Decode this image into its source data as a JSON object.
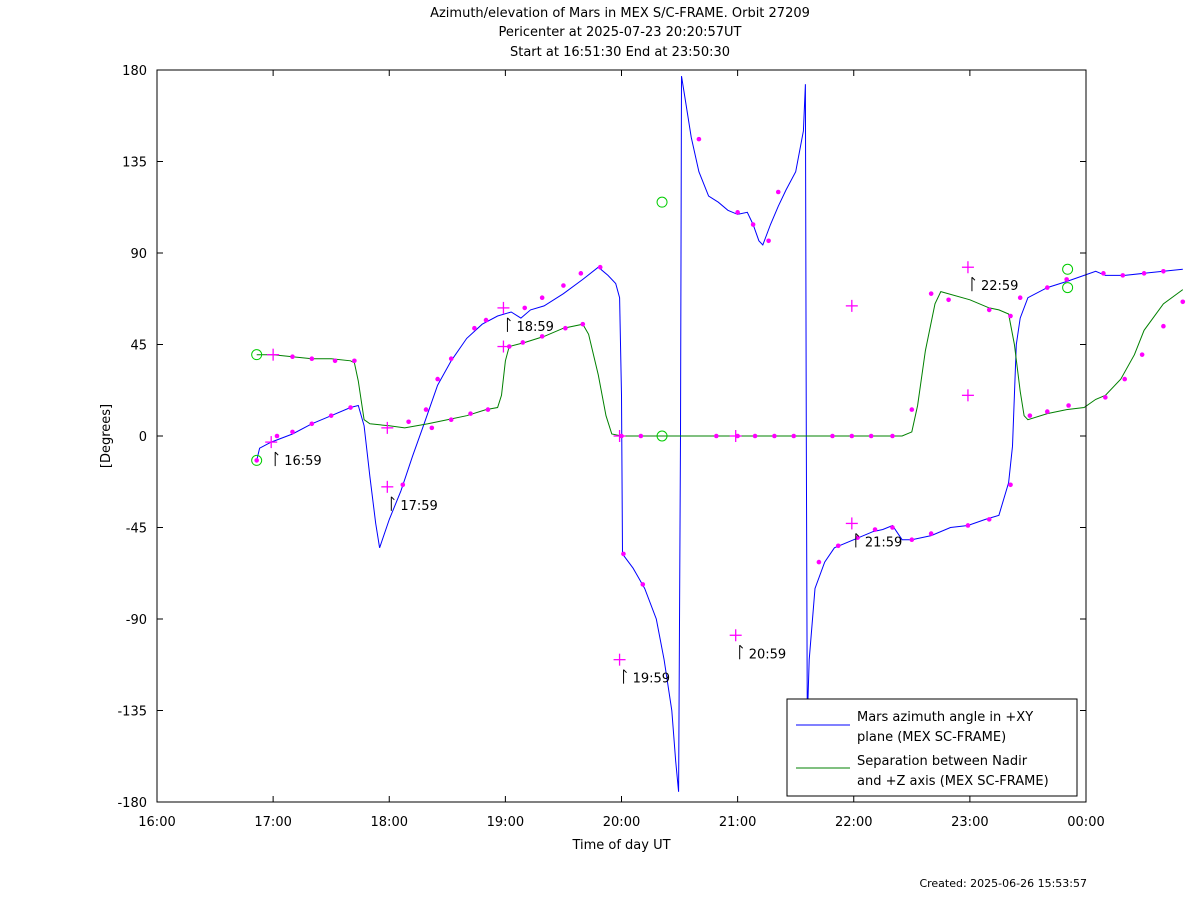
{
  "title": {
    "line1": "Azimuth/elevation of Mars in MEX S/C-FRAME.  Orbit 27209",
    "line2": "Pericenter at 2025-07-23 20:20:57UT",
    "line3": "Start at 16:51:30 End at 23:50:30"
  },
  "footer": "Created: 2025-06-26 15:53:57",
  "colors": {
    "azimuth": "#0000ff",
    "separation": "#008000",
    "marker": "#ff00ff",
    "circle": "#00cc00"
  },
  "chart_data": {
    "type": "line",
    "xlabel": "Time of day UT",
    "ylabel": "[Degrees]",
    "xlim": [
      "16:00",
      "00:00"
    ],
    "ylim": [
      -180,
      180
    ],
    "xticks": [
      "16:00",
      "17:00",
      "18:00",
      "19:00",
      "20:00",
      "21:00",
      "22:00",
      "23:00",
      "00:00"
    ],
    "yticks": [
      180,
      135,
      90,
      45,
      0,
      -45,
      -90,
      -135,
      -180
    ],
    "legend_position": "bottom-right",
    "series": [
      {
        "name": "Mars azimuth angle in +XY plane (MEX SC-FRAME)",
        "legend_lines": [
          "Mars azimuth angle in +XY",
          "plane (MEX SC-FRAME)"
        ],
        "points": [
          [
            "16:51:30",
            -12
          ],
          [
            "16:53",
            -6
          ],
          [
            "16:59",
            -3
          ],
          [
            "17:10",
            1
          ],
          [
            "17:20",
            6
          ],
          [
            "17:30",
            10
          ],
          [
            "17:40",
            14
          ],
          [
            "17:44",
            15
          ],
          [
            "17:47",
            5
          ],
          [
            "17:50",
            -20
          ],
          [
            "17:53",
            -43
          ],
          [
            "17:55",
            -55
          ],
          [
            "18:00",
            -41
          ],
          [
            "18:06",
            -27
          ],
          [
            "18:12",
            -10
          ],
          [
            "18:18",
            6
          ],
          [
            "18:25",
            25
          ],
          [
            "18:32",
            37
          ],
          [
            "18:40",
            48
          ],
          [
            "18:48",
            55
          ],
          [
            "18:56",
            59
          ],
          [
            "19:03",
            61
          ],
          [
            "19:08",
            58
          ],
          [
            "19:13",
            62
          ],
          [
            "19:20",
            64
          ],
          [
            "19:30",
            70
          ],
          [
            "19:40",
            77
          ],
          [
            "19:48",
            83
          ],
          [
            "19:53",
            79
          ],
          [
            "19:57",
            75
          ],
          [
            "19:59",
            68
          ],
          [
            "20:00",
            20
          ],
          [
            "20:00:30",
            -58
          ],
          [
            "20:06",
            -65
          ],
          [
            "20:12",
            -75
          ],
          [
            "20:18",
            -90
          ],
          [
            "20:22",
            -110
          ],
          [
            "20:26",
            -135
          ],
          [
            "20:28",
            -160
          ],
          [
            "20:29:30",
            -175
          ],
          [
            "20:30:30",
            0
          ],
          [
            "20:31",
            177
          ],
          [
            "20:33",
            165
          ],
          [
            "20:36",
            147
          ],
          [
            "20:40",
            130
          ],
          [
            "20:45",
            118
          ],
          [
            "20:50",
            115
          ],
          [
            "20:55",
            111
          ],
          [
            "21:00",
            109
          ],
          [
            "21:05",
            110
          ],
          [
            "21:08",
            104
          ],
          [
            "21:11",
            96
          ],
          [
            "21:13",
            94
          ],
          [
            "21:17",
            104
          ],
          [
            "21:21",
            113
          ],
          [
            "21:25",
            121
          ],
          [
            "21:30",
            130
          ],
          [
            "21:34",
            150
          ],
          [
            "21:35",
            173
          ],
          [
            "21:35:30",
            0
          ],
          [
            "21:36",
            -140
          ],
          [
            "21:37",
            -110
          ],
          [
            "21:40",
            -75
          ],
          [
            "21:45",
            -62
          ],
          [
            "21:50",
            -55
          ],
          [
            "22:00",
            -51
          ],
          [
            "22:10",
            -47
          ],
          [
            "22:15",
            -46
          ],
          [
            "22:20",
            -44
          ],
          [
            "22:25",
            -51
          ],
          [
            "22:30",
            -51
          ],
          [
            "22:40",
            -49
          ],
          [
            "22:50",
            -45
          ],
          [
            "22:59",
            -44
          ],
          [
            "23:08",
            -41
          ],
          [
            "23:15",
            -39
          ],
          [
            "23:20",
            -23
          ],
          [
            "23:22",
            -5
          ],
          [
            "23:23",
            20
          ],
          [
            "23:24",
            45
          ],
          [
            "23:26",
            58
          ],
          [
            "23:30",
            68
          ],
          [
            "23:40",
            73
          ],
          [
            "23:50",
            76
          ],
          [
            "23:59",
            79
          ],
          [
            "0:05",
            81
          ],
          [
            "0:10",
            79
          ],
          [
            "0:20",
            79
          ],
          [
            "0:30",
            80
          ],
          [
            "0:40",
            81
          ],
          [
            "0:50",
            82
          ]
        ]
      },
      {
        "name": "Separation between Nadir and +Z axis (MEX SC-FRAME)",
        "legend_lines": [
          "Separation between Nadir",
          "and +Z axis (MEX SC-FRAME)"
        ],
        "points": [
          [
            "16:51:30",
            40
          ],
          [
            "17:00",
            40
          ],
          [
            "17:10",
            39
          ],
          [
            "17:20",
            38
          ],
          [
            "17:30",
            38
          ],
          [
            "17:40",
            37
          ],
          [
            "17:42",
            36
          ],
          [
            "17:44",
            27
          ],
          [
            "17:47",
            8
          ],
          [
            "17:50",
            6
          ],
          [
            "18:00",
            5
          ],
          [
            "18:08",
            4
          ],
          [
            "18:20",
            6
          ],
          [
            "18:30",
            8
          ],
          [
            "18:40",
            10
          ],
          [
            "18:50",
            13
          ],
          [
            "18:56",
            14
          ],
          [
            "18:58",
            20
          ],
          [
            "19:00",
            37
          ],
          [
            "19:02",
            44
          ],
          [
            "19:10",
            46
          ],
          [
            "19:20",
            49
          ],
          [
            "19:30",
            53
          ],
          [
            "19:40",
            55
          ],
          [
            "19:43",
            50
          ],
          [
            "19:48",
            30
          ],
          [
            "19:52",
            10
          ],
          [
            "19:55",
            1
          ],
          [
            "20:00",
            0
          ],
          [
            "20:20",
            0
          ],
          [
            "21:00",
            0
          ],
          [
            "21:40",
            0
          ],
          [
            "22:00",
            0
          ],
          [
            "22:25",
            0
          ],
          [
            "22:30",
            2
          ],
          [
            "22:33",
            15
          ],
          [
            "22:37",
            42
          ],
          [
            "22:42",
            65
          ],
          [
            "22:45",
            71
          ],
          [
            "23:00",
            67
          ],
          [
            "23:10",
            63
          ],
          [
            "23:15",
            62
          ],
          [
            "23:20",
            60
          ],
          [
            "23:23",
            45
          ],
          [
            "23:26",
            22
          ],
          [
            "23:28",
            10
          ],
          [
            "23:30",
            8
          ],
          [
            "23:40",
            11
          ],
          [
            "23:50",
            13
          ],
          [
            "23:59",
            14
          ],
          [
            "0:05",
            18
          ],
          [
            "0:10",
            20
          ],
          [
            "0:18",
            28
          ],
          [
            "0:25",
            40
          ],
          [
            "0:30",
            52
          ],
          [
            "0:40",
            65
          ],
          [
            "0:50",
            72
          ]
        ]
      }
    ],
    "markers": [
      [
        "16:51:30",
        -12
      ],
      [
        "17:02",
        0
      ],
      [
        "17:10",
        2
      ],
      [
        "17:20",
        6
      ],
      [
        "17:30",
        10
      ],
      [
        "17:40",
        14
      ],
      [
        "18:07",
        -24
      ],
      [
        "18:19",
        13
      ],
      [
        "18:25",
        28
      ],
      [
        "18:32",
        38
      ],
      [
        "18:44",
        53
      ],
      [
        "18:50",
        57
      ],
      [
        "19:10",
        63
      ],
      [
        "19:19",
        68
      ],
      [
        "19:30",
        74
      ],
      [
        "19:39",
        80
      ],
      [
        "19:49",
        83
      ],
      [
        "20:01",
        -58
      ],
      [
        "20:11",
        -73
      ],
      [
        "20:40",
        146
      ],
      [
        "21:00",
        110
      ],
      [
        "21:08",
        104
      ],
      [
        "21:16",
        96
      ],
      [
        "21:21",
        120
      ],
      [
        "21:42",
        -62
      ],
      [
        "21:52",
        -54
      ],
      [
        "22:02",
        -50
      ],
      [
        "22:11",
        -46
      ],
      [
        "22:20",
        -45
      ],
      [
        "22:30",
        -51
      ],
      [
        "22:40",
        -48
      ],
      [
        "22:59",
        -44
      ],
      [
        "23:10",
        -41
      ],
      [
        "23:21",
        -24
      ],
      [
        "23:26",
        68
      ],
      [
        "23:40",
        73
      ],
      [
        "23:50",
        77
      ],
      [
        "0:09",
        80
      ],
      [
        "0:19",
        79
      ],
      [
        "0:30",
        80
      ],
      [
        "0:40",
        81
      ],
      [
        "17:10",
        39
      ],
      [
        "17:20",
        38
      ],
      [
        "17:32",
        37
      ],
      [
        "17:42",
        37
      ],
      [
        "18:10",
        7
      ],
      [
        "18:22",
        4
      ],
      [
        "18:32",
        8
      ],
      [
        "18:42",
        11
      ],
      [
        "18:51",
        13
      ],
      [
        "19:02",
        44
      ],
      [
        "19:09",
        46
      ],
      [
        "19:19",
        49
      ],
      [
        "19:31",
        53
      ],
      [
        "19:40",
        55
      ],
      [
        "20:00",
        0
      ],
      [
        "20:10",
        0
      ],
      [
        "20:49",
        0
      ],
      [
        "21:00",
        0
      ],
      [
        "21:09",
        0
      ],
      [
        "21:19",
        0
      ],
      [
        "21:29",
        0
      ],
      [
        "21:49",
        0
      ],
      [
        "21:59",
        0
      ],
      [
        "22:09",
        0
      ],
      [
        "22:20",
        0
      ],
      [
        "22:30",
        13
      ],
      [
        "22:40",
        70
      ],
      [
        "22:49",
        67
      ],
      [
        "23:10",
        62
      ],
      [
        "23:21",
        59
      ],
      [
        "23:31",
        10
      ],
      [
        "23:40",
        12
      ],
      [
        "23:51",
        15
      ],
      [
        "0:10",
        19
      ],
      [
        "0:20",
        28
      ],
      [
        "0:29",
        40
      ],
      [
        "0:40",
        54
      ],
      [
        "0:50",
        66
      ]
    ],
    "crosses": [
      [
        "16:59",
        -3
      ],
      [
        "17:59",
        -25
      ],
      [
        "18:59",
        63
      ],
      [
        "19:59",
        -110
      ],
      [
        "20:59",
        -98
      ],
      [
        "21:59",
        -43
      ],
      [
        "22:59",
        83
      ],
      [
        "17:00",
        40
      ],
      [
        "17:59",
        4
      ],
      [
        "18:59",
        44
      ],
      [
        "19:59",
        0
      ],
      [
        "20:59",
        0
      ],
      [
        "21:59",
        64
      ],
      [
        "22:59",
        20
      ]
    ],
    "circles": [
      [
        "16:51:30",
        -12
      ],
      [
        "16:51:30",
        40
      ],
      [
        "20:20:57",
        0
      ],
      [
        "20:20:57",
        115
      ],
      [
        "23:50:30",
        82
      ],
      [
        "23:50:30",
        73
      ]
    ],
    "annotations": [
      {
        "text": "16:59",
        "x": "16:59",
        "y": -3
      },
      {
        "text": "17:59",
        "x": "17:59",
        "y": -25
      },
      {
        "text": "18:59",
        "x": "18:59",
        "y": 63
      },
      {
        "text": "19:59",
        "x": "19:59",
        "y": -110
      },
      {
        "text": "20:59",
        "x": "20:59",
        "y": -98
      },
      {
        "text": "21:59",
        "x": "21:59",
        "y": -43
      },
      {
        "text": "22:59",
        "x": "22:59",
        "y": 83
      }
    ]
  }
}
